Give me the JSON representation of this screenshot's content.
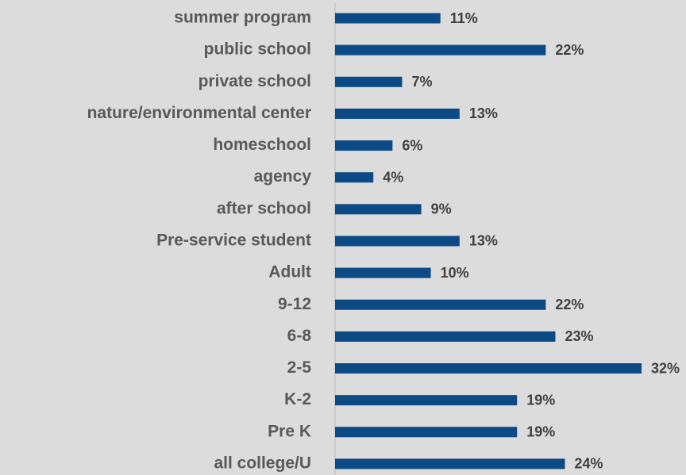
{
  "chart_data": {
    "type": "bar",
    "orientation": "horizontal",
    "categories": [
      "summer program",
      "public school",
      "private school",
      "nature/environmental center",
      "homeschool",
      "agency",
      "after school",
      "Pre-service student",
      "Adult",
      "9-12",
      "6-8",
      "2-5",
      "K-2",
      "Pre K",
      "all college/U"
    ],
    "values": [
      11,
      22,
      7,
      13,
      6,
      4,
      9,
      13,
      10,
      22,
      23,
      32,
      19,
      19,
      24
    ],
    "value_labels": [
      "11%",
      "22%",
      "7%",
      "13%",
      "6%",
      "4%",
      "9%",
      "13%",
      "10%",
      "22%",
      "23%",
      "32%",
      "19%",
      "19%",
      "24%"
    ],
    "color": "#0b4a85"
  }
}
